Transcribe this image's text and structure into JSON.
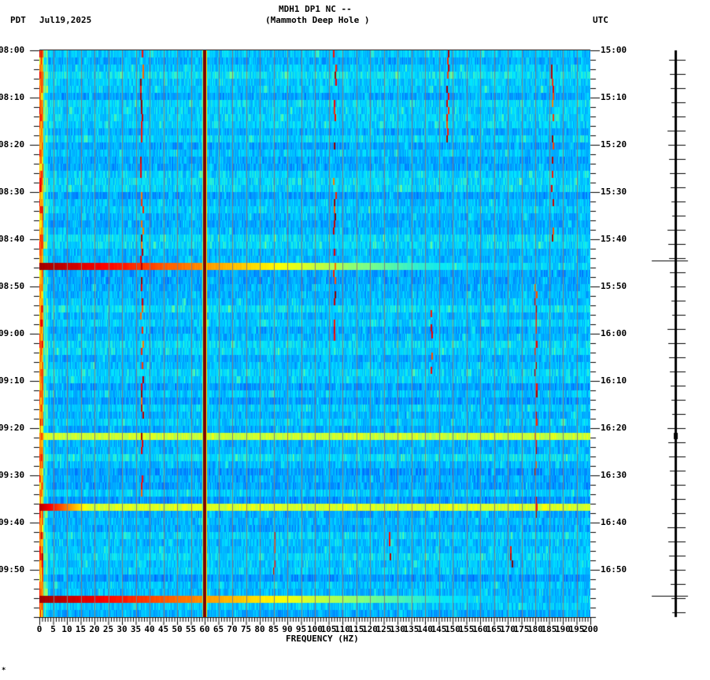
{
  "header": {
    "station_line": "MDH1 DP1 NC --",
    "site_line": "(Mammoth Deep Hole )",
    "left_timezone": "PDT",
    "date": "Jul19,2025",
    "right_timezone": "UTC"
  },
  "footer_mark": "*",
  "colors": {
    "background": "#ffffff",
    "axis": "#000000",
    "colormap": [
      "#0000c8",
      "#0050ff",
      "#00a0ff",
      "#00e6ff",
      "#80ff80",
      "#ffff00",
      "#ff8000",
      "#ff0000",
      "#800000"
    ],
    "grid_line": "#808080"
  },
  "chart_data": {
    "type": "heatmap",
    "title": "MDH1 DP1 NC -- (Mammoth Deep Hole ) spectrogram, Jul19,2025",
    "xlabel": "FREQUENCY (HZ)",
    "ylabel_left": "PDT",
    "ylabel_right": "UTC",
    "xlim": [
      0,
      200
    ],
    "x_ticks": [
      0,
      5,
      10,
      15,
      20,
      25,
      30,
      35,
      40,
      45,
      50,
      55,
      60,
      65,
      70,
      75,
      80,
      85,
      90,
      95,
      100,
      105,
      110,
      115,
      120,
      125,
      130,
      135,
      140,
      145,
      150,
      155,
      160,
      165,
      170,
      175,
      180,
      185,
      190,
      195,
      200
    ],
    "y_ticks_left": [
      "08:00",
      "08:10",
      "08:20",
      "08:30",
      "08:40",
      "08:50",
      "09:00",
      "09:10",
      "09:20",
      "09:30",
      "09:40",
      "09:50"
    ],
    "y_ticks_right": [
      "15:00",
      "15:10",
      "15:20",
      "15:30",
      "15:40",
      "15:50",
      "16:00",
      "16:10",
      "16:20",
      "16:30",
      "16:40",
      "16:50"
    ],
    "time_range_pdt": [
      "08:00",
      "10:00"
    ],
    "minor_tick_minutes": 2,
    "grid": "vertical lines every 5 Hz",
    "features": {
      "persistent_line_hz": 60,
      "broadband_events_minutes": [
        44.5,
        80.5,
        95.5,
        115.5
      ],
      "broadband_event_strength": [
        1.0,
        0.55,
        0.65,
        1.0
      ],
      "low_freq_burst_minutes": [
        95,
        96
      ],
      "intermittent_tones": [
        {
          "hz": 37,
          "start_min": 0,
          "end_min": 100
        },
        {
          "hz": 107,
          "start_min": 0,
          "end_min": 70
        },
        {
          "hz": 148,
          "start_min": 0,
          "end_min": 20
        },
        {
          "hz": 186,
          "start_min": 0,
          "end_min": 40
        },
        {
          "hz": 180,
          "start_min": 48,
          "end_min": 98
        },
        {
          "hz": 142,
          "start_min": 55,
          "end_min": 70
        },
        {
          "hz": 127,
          "start_min": 102,
          "end_min": 110
        },
        {
          "hz": 85,
          "start_min": 102,
          "end_min": 110
        },
        {
          "hz": 171,
          "start_min": 102,
          "end_min": 109
        }
      ]
    },
    "trace_panel": {
      "description": "time-series amplitude trace with hourly/minute tick marks",
      "large_events_minutes": [
        44.5,
        115.5
      ]
    }
  }
}
